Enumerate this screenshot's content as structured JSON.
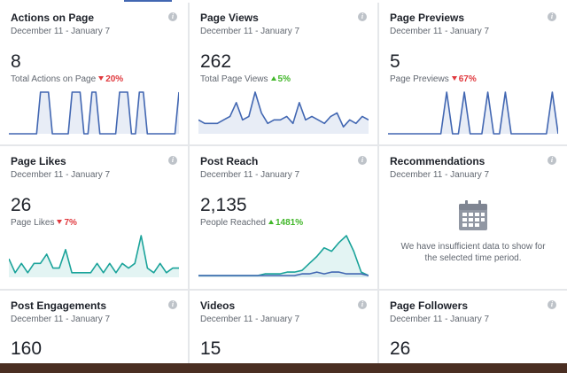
{
  "cards": [
    {
      "title": "Actions on Page",
      "date": "December 11 - January 7",
      "value": "8",
      "sub_label": "Total Actions on Page",
      "change": "20%",
      "direction": "down",
      "series": [
        [
          0,
          0,
          0,
          0,
          0,
          0,
          0,
          0,
          1,
          1,
          1,
          0,
          0,
          0,
          0,
          0,
          1,
          1,
          1,
          0,
          0,
          1,
          1,
          0,
          0,
          0,
          0,
          0,
          1,
          1,
          1,
          0,
          0,
          1,
          1,
          0,
          0,
          0,
          0,
          0,
          0,
          0,
          0,
          1
        ]
      ],
      "colors": [
        "#4267b2"
      ]
    },
    {
      "title": "Page Views",
      "date": "December 11 - January 7",
      "value": "262",
      "sub_label": "Total Page Views",
      "change": "5%",
      "direction": "up",
      "series": [
        [
          4,
          3,
          3,
          3,
          4,
          5,
          9,
          4,
          5,
          12,
          6,
          3,
          4,
          4,
          5,
          3,
          9,
          4,
          5,
          4,
          3,
          5,
          6,
          2,
          4,
          3,
          5,
          4
        ]
      ],
      "colors": [
        "#4267b2"
      ]
    },
    {
      "title": "Page Previews",
      "date": "December 11 - January 7",
      "value": "5",
      "sub_label": "Page Previews",
      "change": "67%",
      "direction": "down",
      "series": [
        [
          0,
          0,
          0,
          0,
          0,
          0,
          0,
          0,
          0,
          0,
          1,
          0,
          0,
          1,
          0,
          0,
          0,
          1,
          0,
          0,
          1,
          0,
          0,
          0,
          0,
          0,
          0,
          0,
          1,
          0
        ]
      ],
      "colors": [
        "#4267b2"
      ]
    },
    {
      "title": "Page Likes",
      "date": "December 11 - January 7",
      "value": "26",
      "sub_label": "Page Likes",
      "change": "7%",
      "direction": "down",
      "series": [
        [
          4,
          1,
          3,
          1,
          3,
          3,
          5,
          2,
          2,
          6,
          1,
          1,
          1,
          1,
          3,
          1,
          3,
          1,
          3,
          2,
          3,
          9,
          2,
          1,
          3,
          1,
          2,
          2
        ]
      ],
      "colors": [
        "#1aa39a"
      ]
    },
    {
      "title": "Post Reach",
      "date": "December 11 - January 7",
      "value": "2,135",
      "sub_label": "People Reached",
      "change": "1481%",
      "direction": "up",
      "series": [
        [
          1,
          1,
          1,
          1,
          1,
          1,
          1,
          1,
          1,
          2,
          2,
          2,
          3,
          3,
          4,
          8,
          12,
          17,
          15,
          20,
          24,
          15,
          3,
          1
        ],
        [
          1,
          1,
          1,
          1,
          1,
          1,
          1,
          1,
          1,
          1,
          1,
          1,
          1,
          1,
          2,
          2,
          3,
          2,
          3,
          3,
          2,
          2,
          2,
          1
        ]
      ],
      "colors": [
        "#1aa39a",
        "#4267b2"
      ]
    },
    {
      "title": "Recommendations",
      "date": "December 11 - January 7",
      "empty_text": "We have insufficient data to show for the selected time period."
    },
    {
      "title": "Post Engagements",
      "date": "December 11 - January 7",
      "value": "160"
    },
    {
      "title": "Videos",
      "date": "December 11 - January 7",
      "value": "15"
    },
    {
      "title": "Page Followers",
      "date": "December 11 - January 7",
      "value": "26"
    }
  ],
  "info_icon_glyph": "i"
}
